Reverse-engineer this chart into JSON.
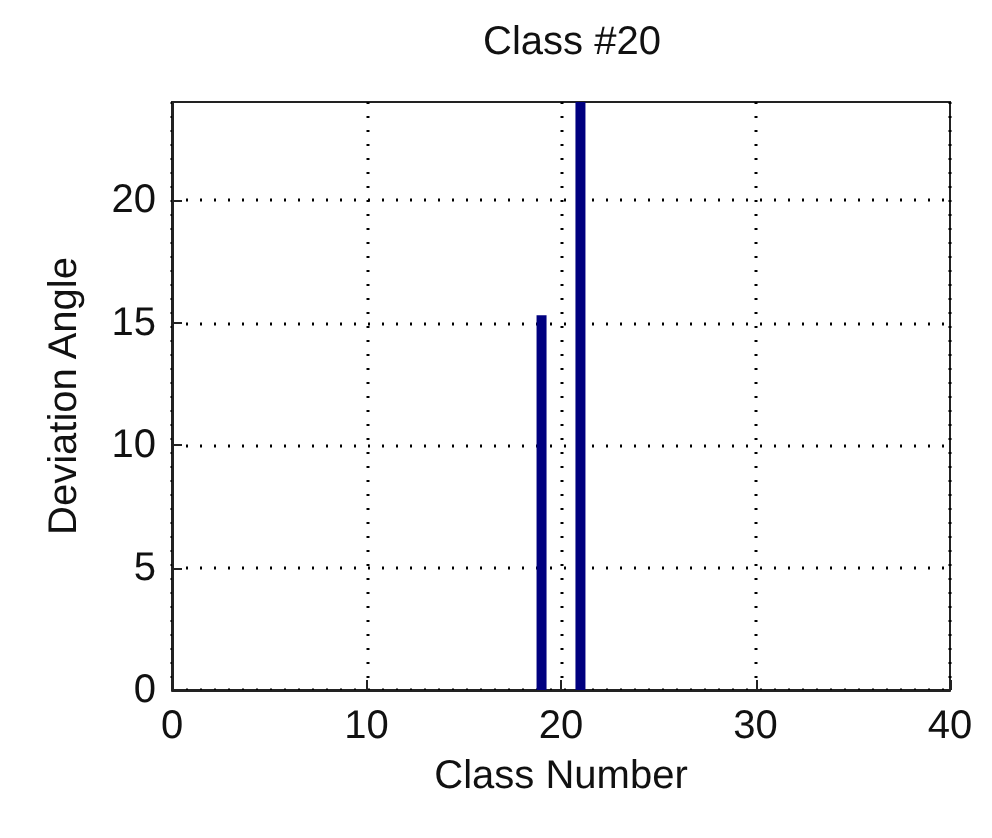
{
  "chart_data": {
    "type": "bar",
    "title": "Class #20",
    "xlabel": "Class Number",
    "ylabel": "Deviation Angle",
    "x": [
      1,
      2,
      3,
      4,
      5,
      6,
      7,
      8,
      9,
      10,
      11,
      12,
      13,
      14,
      15,
      16,
      17,
      18,
      19,
      20,
      21,
      22,
      23,
      24,
      25,
      26,
      27,
      28,
      29,
      30,
      31,
      32,
      33,
      34,
      35,
      36,
      37,
      38,
      39
    ],
    "values": [
      0,
      0,
      0,
      0,
      0,
      0,
      0,
      0,
      0,
      0,
      0,
      0,
      0,
      0,
      0,
      0,
      0,
      0,
      15.3,
      0,
      24,
      0,
      0,
      0,
      0,
      0,
      0,
      0,
      0,
      0,
      0,
      0,
      0,
      0,
      0,
      0,
      0,
      0,
      0
    ],
    "color": "#00007f",
    "xlim": [
      0,
      40
    ],
    "xticks": [
      0,
      10,
      20,
      30,
      40
    ],
    "ylim": [
      0,
      24
    ],
    "yticks": [
      0,
      5,
      10,
      15,
      20
    ],
    "grid": true,
    "line_style": "dotted"
  }
}
